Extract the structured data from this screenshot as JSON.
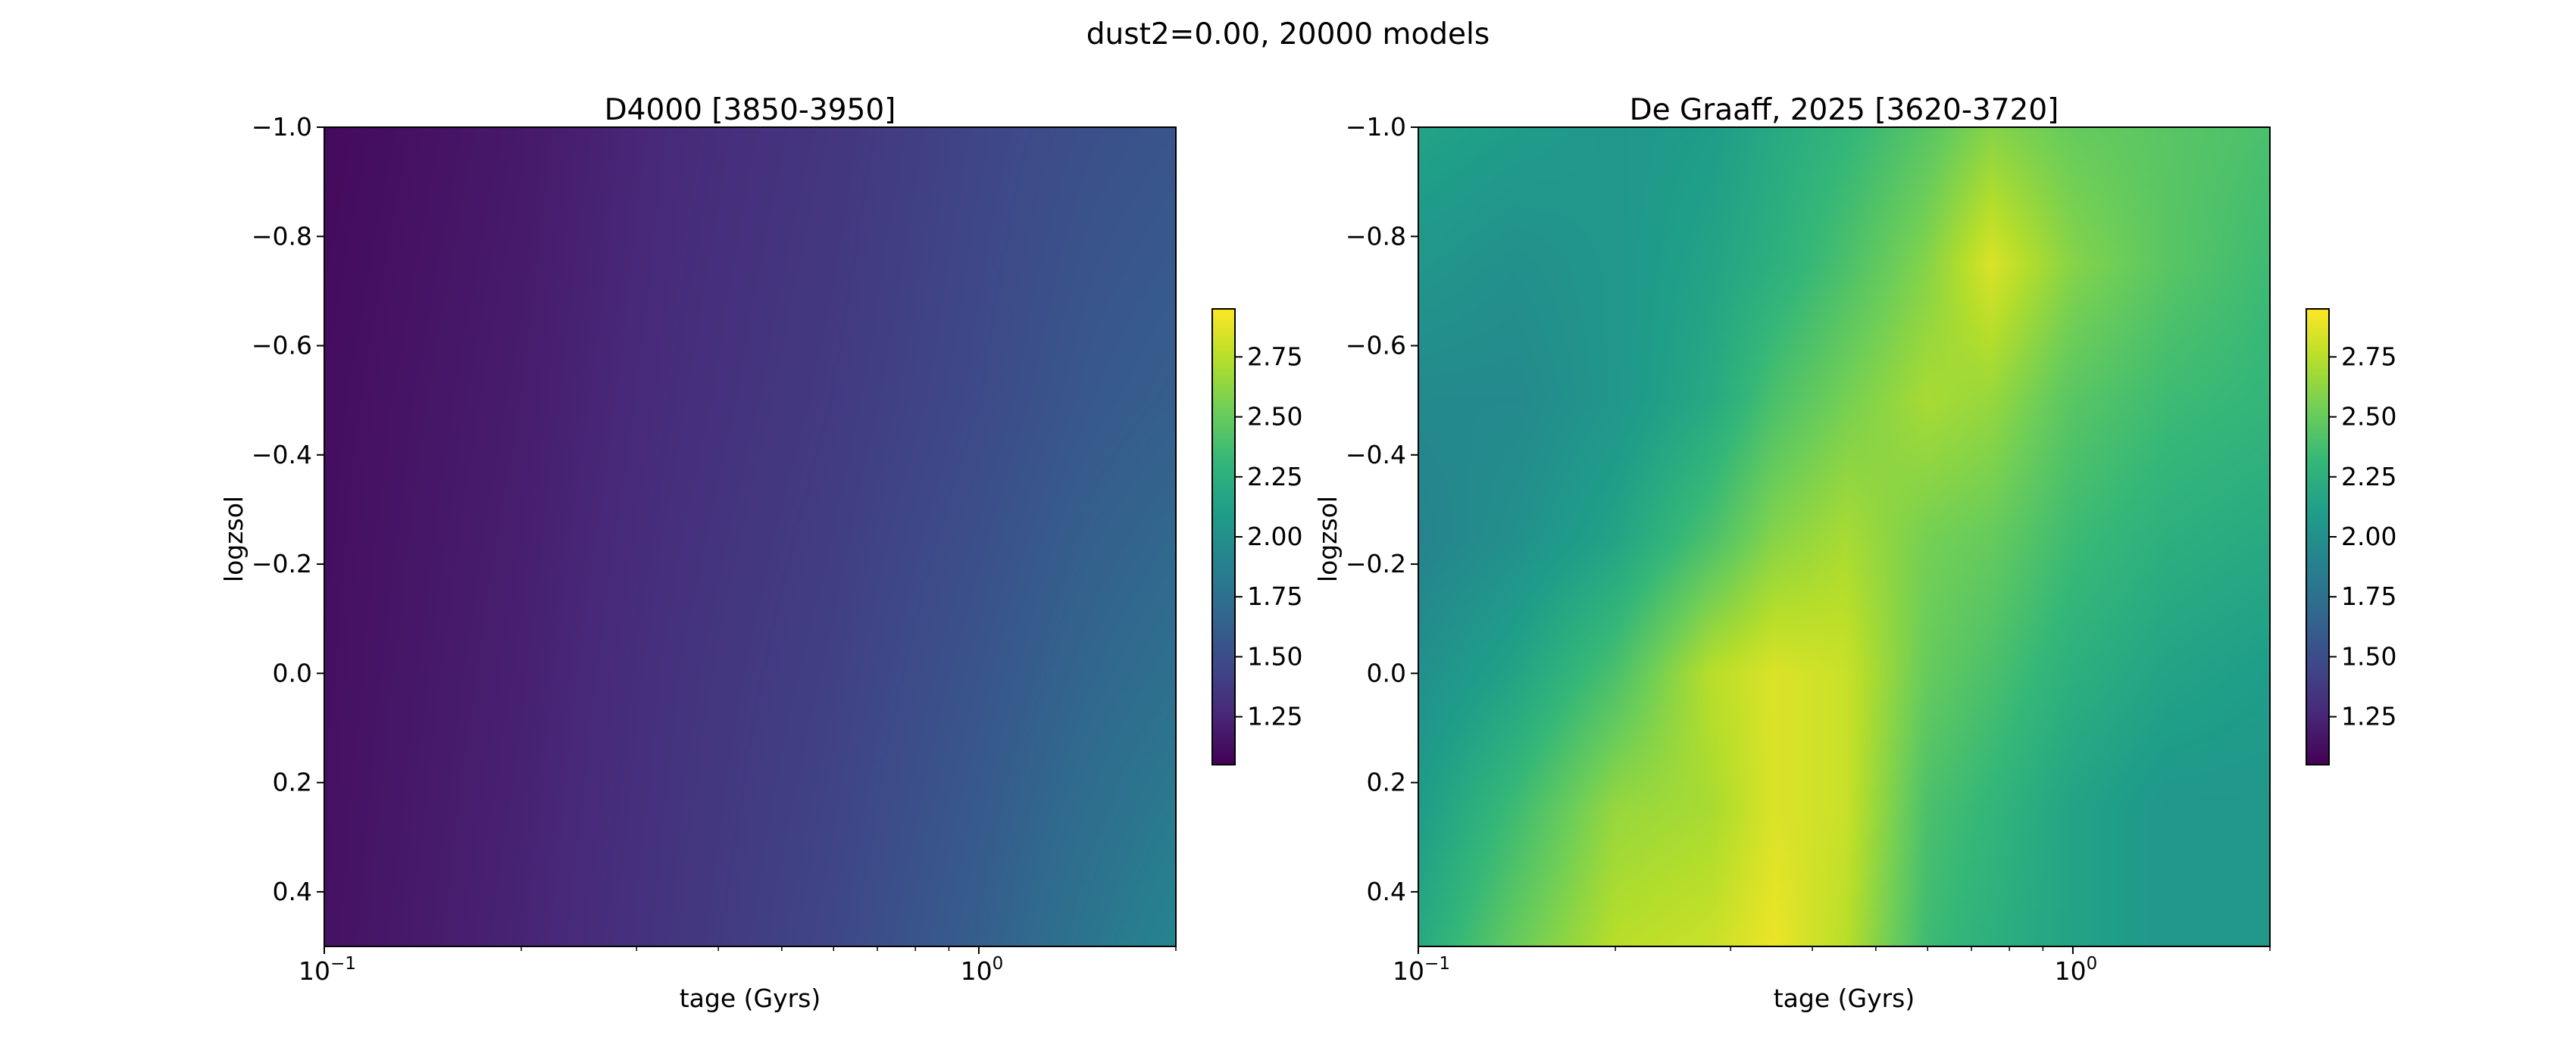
{
  "title": "dust2=0.00, 20000 models",
  "colormap": [
    "#440154",
    "#482878",
    "#3e4989",
    "#31688e",
    "#26828e",
    "#1f9e89",
    "#35b779",
    "#6ece58",
    "#b5de2b",
    "#fde725"
  ],
  "chart_data": [
    {
      "type": "heatmap",
      "title": "D4000 [3850-3950]",
      "xlabel": "tage (Gyrs)",
      "ylabel": "logzsol",
      "xscale": "log",
      "xlim": [
        0.1,
        2.0
      ],
      "ylim": [
        0.5,
        -1.0
      ],
      "x_ticks": [
        {
          "base": "10",
          "exp": "−1",
          "value": 0.1
        },
        {
          "base": "10",
          "exp": "0",
          "value": 1.0
        }
      ],
      "y_ticks": [
        "−1.0",
        "−0.8",
        "−0.6",
        "−0.4",
        "−0.2",
        "0.0",
        "0.2",
        "0.4"
      ],
      "y_tick_values": [
        -1.0,
        -0.8,
        -0.6,
        -0.4,
        -0.2,
        0.0,
        0.2,
        0.4
      ],
      "x": [
        0.1,
        0.2,
        0.35,
        0.6,
        1.0,
        1.5,
        2.0
      ],
      "y": [
        -1.0,
        -0.5,
        0.0,
        0.5
      ],
      "z": [
        [
          1.1,
          1.18,
          1.28,
          1.35,
          1.45,
          1.52,
          1.55
        ],
        [
          1.12,
          1.2,
          1.3,
          1.38,
          1.48,
          1.58,
          1.62
        ],
        [
          1.13,
          1.22,
          1.33,
          1.42,
          1.55,
          1.68,
          1.75
        ],
        [
          1.14,
          1.24,
          1.35,
          1.46,
          1.62,
          1.8,
          1.92
        ]
      ],
      "colorbar": {
        "min": 1.05,
        "max": 2.95,
        "ticks": [
          "1.25",
          "1.50",
          "1.75",
          "2.00",
          "2.25",
          "2.50",
          "2.75"
        ],
        "tick_values": [
          1.25,
          1.5,
          1.75,
          2.0,
          2.25,
          2.5,
          2.75
        ]
      }
    },
    {
      "type": "heatmap",
      "title": "De Graaff, 2025 [3620-3720]",
      "xlabel": "tage (Gyrs)",
      "ylabel": "logzsol",
      "xscale": "log",
      "xlim": [
        0.1,
        2.0
      ],
      "ylim": [
        0.5,
        -1.0
      ],
      "x_ticks": [
        {
          "base": "10",
          "exp": "−1",
          "value": 0.1
        },
        {
          "base": "10",
          "exp": "0",
          "value": 1.0
        }
      ],
      "y_ticks": [
        "−1.0",
        "−0.8",
        "−0.6",
        "−0.4",
        "−0.2",
        "0.0",
        "0.2",
        "0.4"
      ],
      "y_tick_values": [
        -1.0,
        -0.8,
        -0.6,
        -0.4,
        -0.2,
        0.0,
        0.2,
        0.4
      ],
      "x": [
        0.1,
        0.14,
        0.2,
        0.28,
        0.35,
        0.45,
        0.6,
        0.75,
        1.0,
        1.4,
        2.0
      ],
      "y": [
        -1.0,
        -0.75,
        -0.5,
        -0.25,
        0.0,
        0.25,
        0.5
      ],
      "z": [
        [
          2.15,
          2.1,
          2.05,
          2.1,
          2.2,
          2.3,
          2.45,
          2.6,
          2.5,
          2.45,
          2.4
        ],
        [
          2.05,
          2.0,
          2.05,
          2.15,
          2.25,
          2.4,
          2.6,
          2.85,
          2.6,
          2.45,
          2.35
        ],
        [
          1.95,
          1.95,
          2.05,
          2.2,
          2.4,
          2.55,
          2.7,
          2.65,
          2.45,
          2.35,
          2.3
        ],
        [
          1.9,
          2.0,
          2.15,
          2.4,
          2.6,
          2.7,
          2.55,
          2.5,
          2.35,
          2.25,
          2.2
        ],
        [
          2.0,
          2.15,
          2.4,
          2.75,
          2.85,
          2.8,
          2.5,
          2.4,
          2.25,
          2.15,
          2.1
        ],
        [
          2.1,
          2.35,
          2.65,
          2.7,
          2.85,
          2.8,
          2.4,
          2.3,
          2.15,
          2.05,
          2.05
        ],
        [
          2.2,
          2.5,
          2.75,
          2.8,
          2.9,
          2.75,
          2.35,
          2.25,
          2.15,
          2.05,
          2.05
        ]
      ],
      "colorbar": {
        "min": 1.05,
        "max": 2.95,
        "ticks": [
          "1.25",
          "1.50",
          "1.75",
          "2.00",
          "2.25",
          "2.50",
          "2.75"
        ],
        "tick_values": [
          1.25,
          1.5,
          1.75,
          2.0,
          2.25,
          2.5,
          2.75
        ]
      }
    }
  ]
}
